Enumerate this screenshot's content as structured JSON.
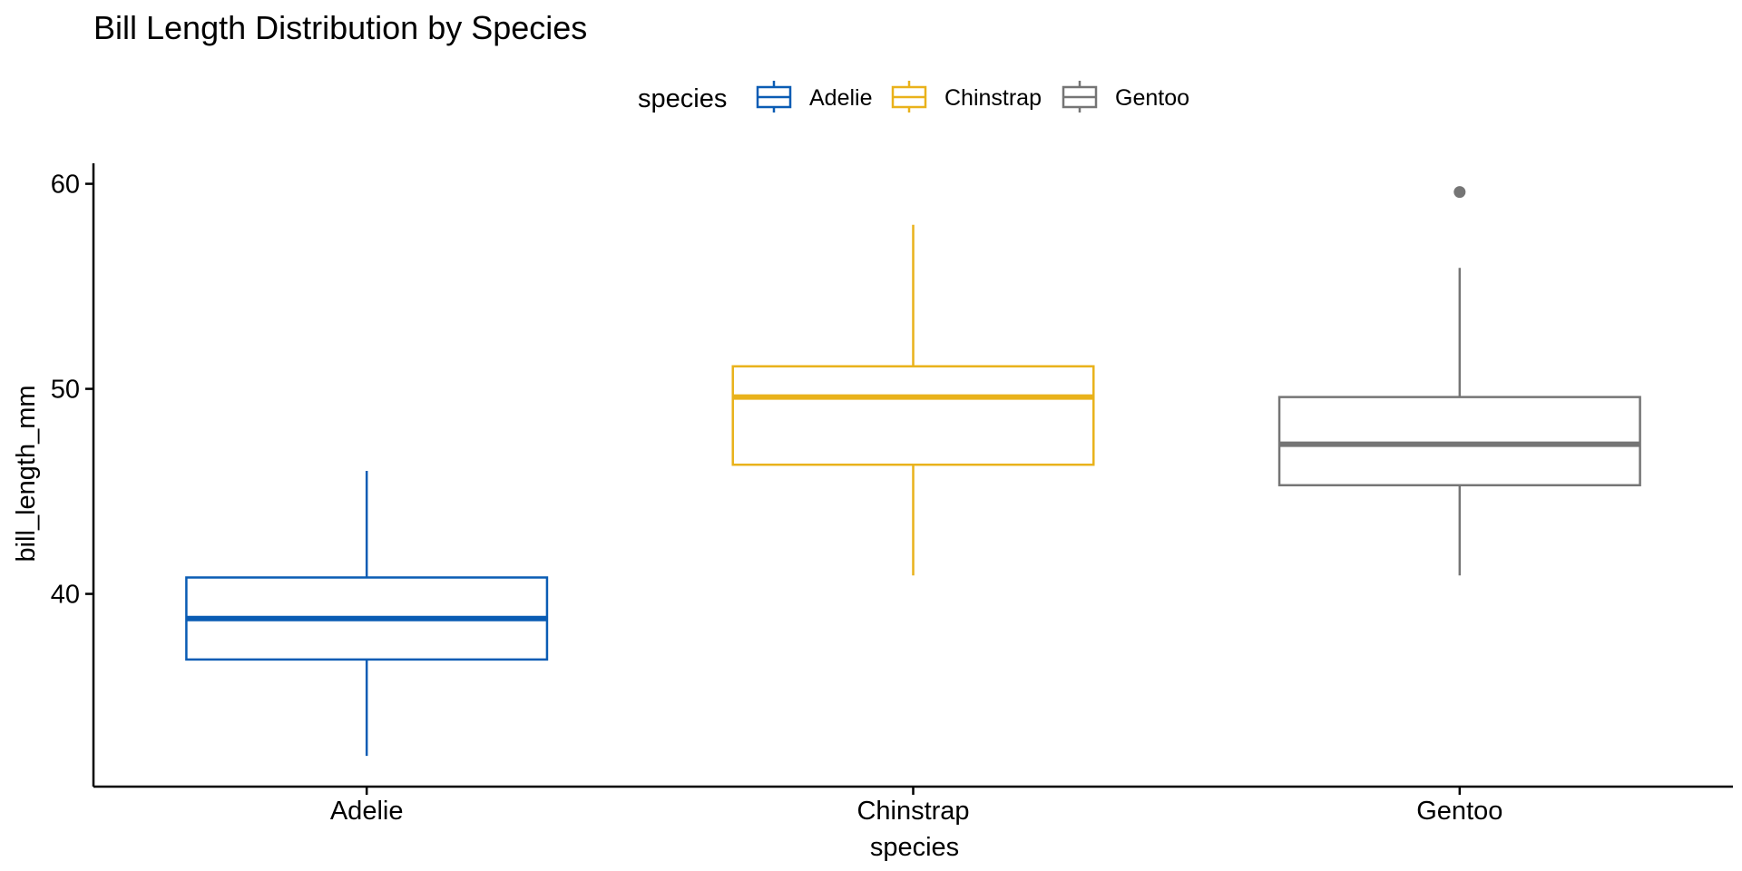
{
  "chart_data": {
    "type": "box",
    "title": "Bill Length Distribution by Species",
    "xlabel": "species",
    "ylabel": "bill_length_mm",
    "ylim": [
      30.6,
      61.0
    ],
    "yticks": [
      40,
      50,
      60
    ],
    "grid": false,
    "legend": {
      "title": "species",
      "placement": "top-center"
    },
    "categories": [
      "Adelie",
      "Chinstrap",
      "Gentoo"
    ],
    "series": [
      {
        "name": "Adelie",
        "color": "#0a5cb4",
        "min": 32.1,
        "q1": 36.8,
        "median": 38.8,
        "q3": 40.8,
        "max": 46.0,
        "outliers": []
      },
      {
        "name": "Chinstrap",
        "color": "#e9b21b",
        "min": 40.9,
        "q1": 46.3,
        "median": 49.6,
        "q3": 51.1,
        "max": 58.0,
        "outliers": []
      },
      {
        "name": "Gentoo",
        "color": "#757575",
        "min": 40.9,
        "q1": 45.3,
        "median": 47.3,
        "q3": 49.6,
        "max": 55.9,
        "outliers": [
          59.6
        ]
      }
    ]
  }
}
